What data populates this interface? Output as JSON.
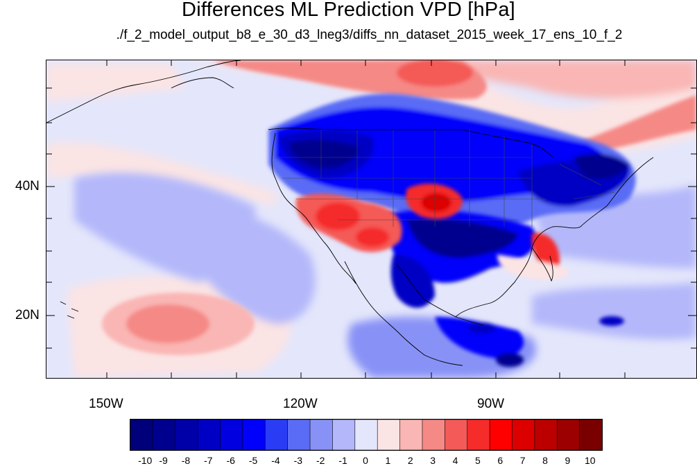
{
  "title": "Differences ML Prediction VPD [hPa]",
  "subtitle": "./f_2_model_output_b8_e_30_d3_lneg3/diffs_nn_dataset_2015_week_17_ens_10_f_2",
  "axes": {
    "lon_labels": [
      "150W",
      "120W",
      "90W"
    ],
    "lat_labels": [
      "40N",
      "20N"
    ],
    "lon_range": [
      -159.5,
      -59.5
    ],
    "lat_range": [
      10.5,
      59.5
    ]
  },
  "colorbar": {
    "labels": [
      "-10",
      "-9",
      "-8",
      "-7",
      "-6",
      "-5",
      "-4",
      "-3",
      "-2",
      "-1",
      "0",
      "1",
      "2",
      "3",
      "4",
      "5",
      "6",
      "7",
      "8",
      "9",
      "10"
    ],
    "colors": [
      "#00007a",
      "#00008e",
      "#0000a8",
      "#0000c4",
      "#0000e0",
      "#0000fb",
      "#2a3df5",
      "#5a6cf5",
      "#8892f6",
      "#b4b8fa",
      "#e4e6fb",
      "#fbe4e4",
      "#f9b6b4",
      "#f58986",
      "#f45a57",
      "#f52c2a",
      "#ff0000",
      "#dc0000",
      "#bc0000",
      "#9c0000",
      "#7a0000"
    ]
  },
  "chart_data": {
    "type": "heatmap",
    "variable": "Differences ML Prediction VPD [hPa]",
    "lon_range": [
      -159.5,
      -59.5
    ],
    "lat_range": [
      10.5,
      59.5
    ],
    "colorbar_min": -10,
    "colorbar_max": 10,
    "regions": [
      {
        "name": "northwest-us-negative",
        "lon": -117,
        "lat": 45,
        "value": -7
      },
      {
        "name": "southern-plains-negative",
        "lon": -97,
        "lat": 33,
        "value": -8
      },
      {
        "name": "upper-midwest-negative",
        "lon": -90,
        "lat": 44,
        "value": -5
      },
      {
        "name": "northeast-negative",
        "lon": -74,
        "lat": 42,
        "value": -6
      },
      {
        "name": "southwest-positive",
        "lon": -112,
        "lat": 34,
        "value": 5
      },
      {
        "name": "kansas-positive",
        "lon": -101,
        "lat": 37,
        "value": 7
      },
      {
        "name": "florida-positive",
        "lon": -81.5,
        "lat": 28,
        "value": 6
      },
      {
        "name": "canada-positive-band",
        "lon": -110,
        "lat": 57,
        "value": 4
      },
      {
        "name": "hudson-positive",
        "lon": -65,
        "lat": 52,
        "value": 3
      },
      {
        "name": "pacific-20N-positive",
        "lon": -147,
        "lat": 20,
        "value": 3
      },
      {
        "name": "east-pacific-negative",
        "lon": -127,
        "lat": 26,
        "value": -2
      },
      {
        "name": "central-america-negative",
        "lon": -92,
        "lat": 15,
        "value": -5
      }
    ]
  }
}
